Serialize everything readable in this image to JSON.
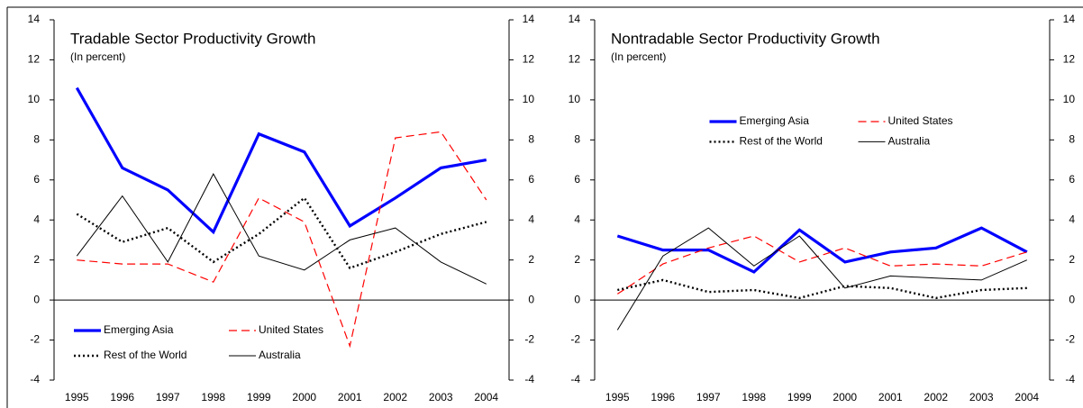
{
  "chart_data": [
    {
      "type": "line",
      "title": "Tradable Sector Productivity Growth",
      "subtitle": "(In percent)",
      "categories": [
        "1995",
        "1996",
        "1997",
        "1998",
        "1999",
        "2000",
        "2001",
        "2002",
        "2003",
        "2004"
      ],
      "series": [
        {
          "name": "Emerging Asia",
          "color": "#0000ff",
          "values": [
            10.6,
            6.6,
            5.5,
            3.4,
            8.3,
            7.4,
            3.7,
            5.1,
            6.6,
            7.0
          ]
        },
        {
          "name": "United States",
          "color": "#ff0000",
          "values": [
            2.0,
            1.8,
            1.8,
            0.9,
            5.1,
            3.9,
            -2.3,
            8.1,
            8.4,
            5.0
          ]
        },
        {
          "name": "Rest of the World",
          "color": "#000000",
          "values": [
            4.3,
            2.9,
            3.6,
            1.9,
            3.3,
            5.1,
            1.6,
            2.4,
            3.3,
            3.9
          ]
        },
        {
          "name": "Australia",
          "color": "#000000",
          "values": [
            2.2,
            5.2,
            1.9,
            6.3,
            2.2,
            1.5,
            3.0,
            3.6,
            1.9,
            0.8
          ]
        }
      ],
      "ylim": [
        -4,
        14
      ],
      "yticks": [
        -4,
        -2,
        0,
        2,
        4,
        6,
        8,
        10,
        12,
        14
      ],
      "y2lim": [
        -4,
        14
      ],
      "y2ticks": [
        -4,
        -2,
        0,
        2,
        4,
        6,
        8,
        10,
        12,
        14
      ],
      "legend": "lower left"
    },
    {
      "type": "line",
      "title": "Nontradable Sector Productivity Growth",
      "subtitle": "(In percent)",
      "categories": [
        "1995",
        "1996",
        "1997",
        "1998",
        "1999",
        "2000",
        "2001",
        "2002",
        "2003",
        "2004"
      ],
      "series": [
        {
          "name": "Emerging Asia",
          "color": "#0000ff",
          "values": [
            3.2,
            2.5,
            2.5,
            1.4,
            3.5,
            1.9,
            2.4,
            2.6,
            3.6,
            2.4
          ]
        },
        {
          "name": "United States",
          "color": "#ff0000",
          "values": [
            0.3,
            1.8,
            2.6,
            3.2,
            1.9,
            2.6,
            1.7,
            1.8,
            1.7,
            2.4
          ]
        },
        {
          "name": "Rest of the World",
          "color": "#000000",
          "values": [
            0.5,
            1.0,
            0.4,
            0.5,
            0.1,
            0.7,
            0.6,
            0.1,
            0.5,
            0.6
          ]
        },
        {
          "name": "Australia",
          "color": "#000000",
          "values": [
            -1.5,
            2.2,
            3.6,
            1.7,
            3.2,
            0.6,
            1.2,
            1.1,
            1.0,
            2.0
          ]
        }
      ],
      "ylim": [
        -4,
        14
      ],
      "yticks": [
        -4,
        -2,
        0,
        2,
        4,
        6,
        8,
        10,
        12,
        14
      ],
      "y2lim": [
        -4,
        14
      ],
      "y2ticks": [
        -4,
        -2,
        0,
        2,
        4,
        6,
        8,
        10,
        12,
        14
      ],
      "legend": "upper center"
    }
  ]
}
